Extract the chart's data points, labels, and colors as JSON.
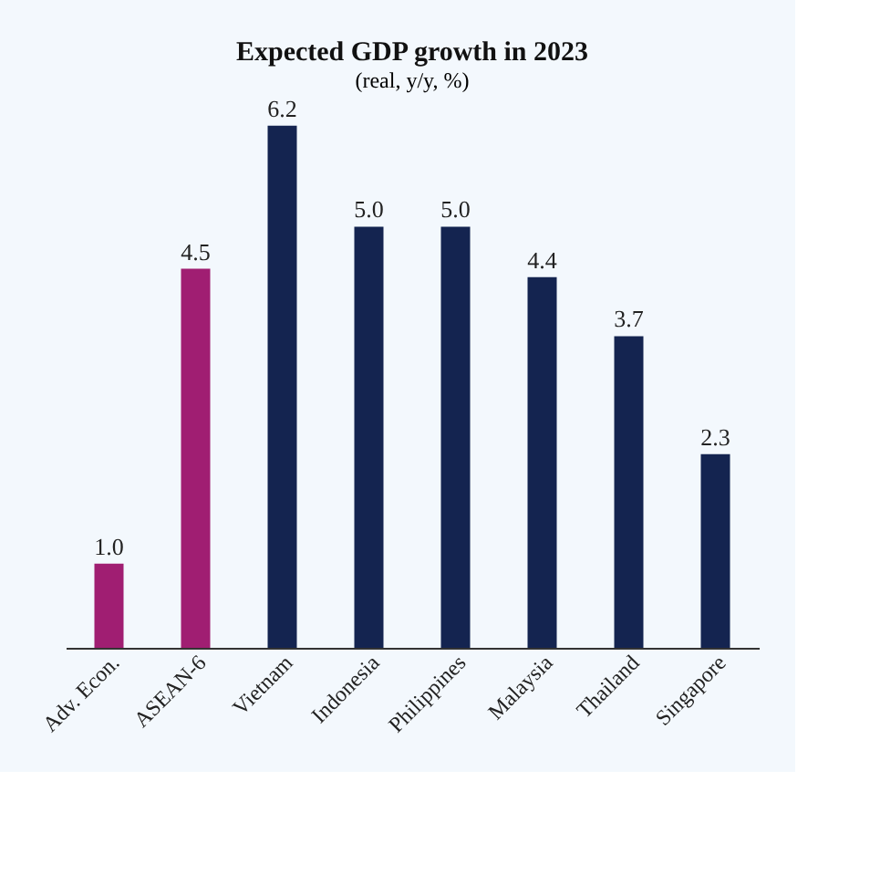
{
  "chart_data": {
    "type": "bar",
    "title": "Expected GDP growth in 2023",
    "subtitle": "(real, y/y, %)",
    "categories": [
      "Adv. Econ.",
      "ASEAN-6",
      "Vietnam",
      "Indonesia",
      "Philippines",
      "Malaysia",
      "Thailand",
      "Singapore"
    ],
    "values": [
      1.0,
      4.5,
      6.2,
      5.0,
      5.0,
      4.4,
      3.7,
      2.3
    ],
    "colors": [
      "#a01e72",
      "#a01e72",
      "#142450",
      "#142450",
      "#142450",
      "#142450",
      "#142450",
      "#142450"
    ],
    "value_labels": [
      "1.0",
      "4.5",
      "6.2",
      "5.0",
      "5.0",
      "4.4",
      "3.7",
      "2.3"
    ]
  }
}
